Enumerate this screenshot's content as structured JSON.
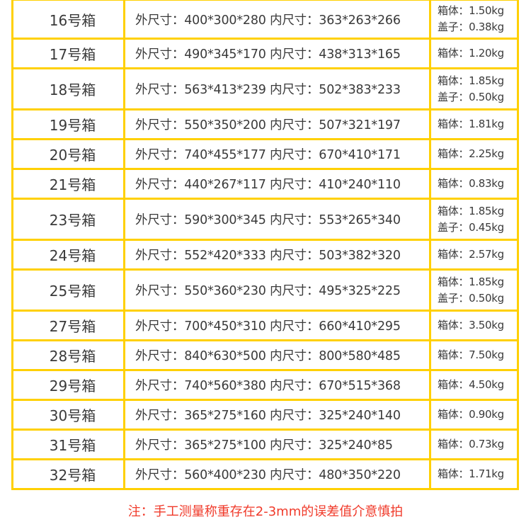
{
  "rows": [
    {
      "name": "16号箱",
      "dims": "外尺寸：400*300*280 内尺寸：363*263*266",
      "weights": [
        "箱体：1.50kg",
        "盖子：0.38kg"
      ]
    },
    {
      "name": "17号箱",
      "dims": "外尺寸：490*345*170 内尺寸：438*313*165",
      "weights": [
        "箱体：1.20kg"
      ]
    },
    {
      "name": "18号箱",
      "dims": "外尺寸：563*413*239 内尺寸：502*383*233",
      "weights": [
        "箱体：1.85kg",
        "盖子：0.50kg"
      ]
    },
    {
      "name": "19号箱",
      "dims": "外尺寸：550*350*200 内尺寸：507*321*197",
      "weights": [
        "箱体：1.81kg"
      ]
    },
    {
      "name": "20号箱",
      "dims": "外尺寸：740*455*177 内尺寸：670*410*171",
      "weights": [
        "箱体：2.25kg"
      ]
    },
    {
      "name": "21号箱",
      "dims": "外尺寸：440*267*117 内尺寸：410*240*110",
      "weights": [
        "箱体：0.83kg"
      ]
    },
    {
      "name": "23号箱",
      "dims": "外尺寸：590*300*345 内尺寸：553*265*340",
      "weights": [
        "箱体：1.85kg",
        "盖子：0.45kg"
      ]
    },
    {
      "name": "24号箱",
      "dims": "外尺寸：552*420*333 内尺寸：503*382*320",
      "weights": [
        "箱体：2.57kg"
      ]
    },
    {
      "name": "25号箱",
      "dims": "外尺寸：550*360*230 内尺寸：495*325*225",
      "weights": [
        "箱体：1.85kg",
        "盖子：0.50kg"
      ]
    },
    {
      "name": "27号箱",
      "dims": "外尺寸：700*450*310 内尺寸：660*410*295",
      "weights": [
        "箱体：3.50kg"
      ]
    },
    {
      "name": "28号箱",
      "dims": "外尺寸：840*630*500 内尺寸：800*580*485",
      "weights": [
        "箱体：7.50kg"
      ]
    },
    {
      "name": "29号箱",
      "dims": "外尺寸：740*560*380 内尺寸：670*515*368",
      "weights": [
        "箱体：4.50kg"
      ]
    },
    {
      "name": "30号箱",
      "dims": "外尺寸：365*275*160 内尺寸：325*240*140",
      "weights": [
        "箱体：0.90kg"
      ]
    },
    {
      "name": "31号箱",
      "dims": "外尺寸：365*275*100 内尺寸：325*240*85",
      "weights": [
        "箱体：0.73kg"
      ]
    },
    {
      "name": "32号箱",
      "dims": "外尺寸：560*400*230 内尺寸：480*350*220",
      "weights": [
        "箱体：1.71kg"
      ]
    }
  ],
  "note": "注：手工测量称重存在2-3mm的误差值介意慎拍",
  "colors": {
    "border": "#FFD000",
    "note": "#F03A2A",
    "text": "#3a3a3a"
  }
}
